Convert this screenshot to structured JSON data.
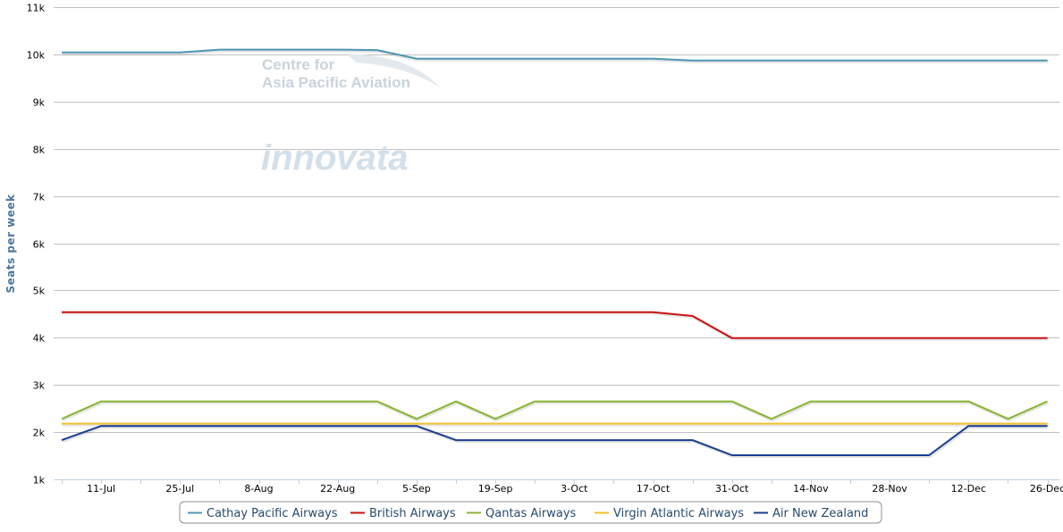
{
  "watermarks": {
    "line1": "Centre for",
    "line2": "Asia Pacific Aviation",
    "brand": "innovata"
  },
  "chart_data": {
    "type": "line",
    "title": "",
    "xlabel": "",
    "ylabel": "Seats per week",
    "ylim": [
      1000,
      11000
    ],
    "y_ticks": [
      1000,
      2000,
      3000,
      4000,
      5000,
      6000,
      7000,
      8000,
      9000,
      10000,
      11000
    ],
    "y_tick_labels": [
      "1k",
      "2k",
      "3k",
      "4k",
      "5k",
      "6k",
      "7k",
      "8k",
      "9k",
      "10k",
      "11k"
    ],
    "x_tick_labels": [
      "11-Jul",
      "25-Jul",
      "8-Aug",
      "22-Aug",
      "5-Sep",
      "19-Sep",
      "3-Oct",
      "17-Oct",
      "31-Oct",
      "14-Nov",
      "28-Nov",
      "12-Dec",
      "26-Dec"
    ],
    "x": [
      "4-Jul",
      "11-Jul",
      "18-Jul",
      "25-Jul",
      "1-Aug",
      "8-Aug",
      "15-Aug",
      "22-Aug",
      "29-Aug",
      "5-Sep",
      "12-Sep",
      "19-Sep",
      "26-Sep",
      "3-Oct",
      "10-Oct",
      "17-Oct",
      "24-Oct",
      "31-Oct",
      "7-Nov",
      "14-Nov",
      "21-Nov",
      "28-Nov",
      "5-Dec",
      "12-Dec",
      "19-Dec",
      "26-Dec"
    ],
    "grid": true,
    "legend_position": "bottom-center",
    "series": [
      {
        "name": "Cathay Pacific Airways",
        "color": "#4e97b6",
        "values": [
          10040,
          10040,
          10040,
          10040,
          10100,
          10100,
          10100,
          10100,
          10090,
          9910,
          9910,
          9910,
          9910,
          9910,
          9910,
          9910,
          9870,
          9870,
          9870,
          9870,
          9870,
          9870,
          9870,
          9870,
          9870,
          9870
        ]
      },
      {
        "name": "British Airways",
        "color": "#cc1111",
        "values": [
          4540,
          4540,
          4540,
          4540,
          4540,
          4540,
          4540,
          4540,
          4540,
          4540,
          4540,
          4540,
          4540,
          4540,
          4540,
          4540,
          4460,
          3990,
          3990,
          3990,
          3990,
          3990,
          3990,
          3990,
          3990,
          3990
        ]
      },
      {
        "name": "Qantas Airways",
        "color": "#8bb534",
        "values": [
          2280,
          2650,
          2650,
          2650,
          2650,
          2650,
          2650,
          2650,
          2650,
          2280,
          2650,
          2280,
          2650,
          2650,
          2650,
          2650,
          2650,
          2650,
          2280,
          2650,
          2650,
          2650,
          2650,
          2650,
          2280,
          2650
        ]
      },
      {
        "name": "Virgin Atlantic Airways",
        "color": "#f0c030",
        "values": [
          2180,
          2180,
          2180,
          2180,
          2180,
          2180,
          2180,
          2180,
          2180,
          2180,
          2180,
          2180,
          2180,
          2180,
          2180,
          2180,
          2180,
          2180,
          2180,
          2180,
          2180,
          2180,
          2180,
          2180,
          2180,
          2180
        ]
      },
      {
        "name": "Air New Zealand",
        "color": "#1a3e8f",
        "values": [
          1830,
          2130,
          2130,
          2130,
          2130,
          2130,
          2130,
          2130,
          2130,
          2130,
          1830,
          1830,
          1830,
          1830,
          1830,
          1830,
          1830,
          1510,
          1510,
          1510,
          1510,
          1510,
          1510,
          2130,
          2130,
          2130
        ]
      }
    ]
  }
}
